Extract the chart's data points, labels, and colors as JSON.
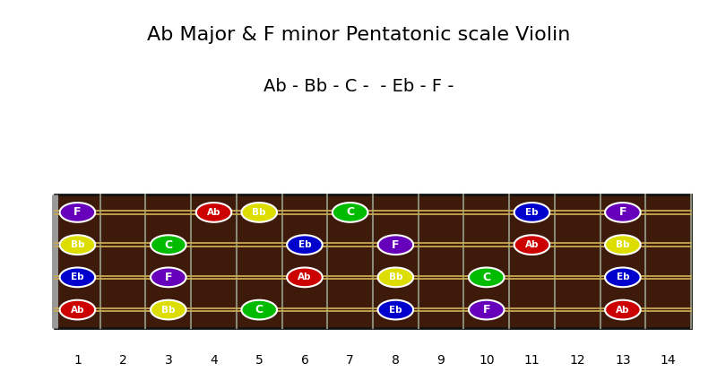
{
  "title": "Ab Major & F minor Pentatonic scale Violin",
  "subtitle": "Ab - Bb - C -  - Eb - F -",
  "fret_max": 14,
  "num_strings": 4,
  "background_color": "#ffffff",
  "board_color": "#3d1a0a",
  "string_color": "#c8aa50",
  "fret_line_color": "#888877",
  "nut_color": "#999999",
  "notes": [
    {
      "string": 3,
      "fret": 1,
      "note": "F",
      "color": "#6600bb"
    },
    {
      "string": 3,
      "fret": 4,
      "note": "Ab",
      "color": "#cc0000"
    },
    {
      "string": 3,
      "fret": 5,
      "note": "Bb",
      "color": "#dddd00"
    },
    {
      "string": 3,
      "fret": 7,
      "note": "C",
      "color": "#00bb00"
    },
    {
      "string": 3,
      "fret": 11,
      "note": "Eb",
      "color": "#0000cc"
    },
    {
      "string": 3,
      "fret": 13,
      "note": "F",
      "color": "#6600bb"
    },
    {
      "string": 2,
      "fret": 1,
      "note": "Bb",
      "color": "#dddd00"
    },
    {
      "string": 2,
      "fret": 3,
      "note": "C",
      "color": "#00bb00"
    },
    {
      "string": 2,
      "fret": 6,
      "note": "Eb",
      "color": "#0000cc"
    },
    {
      "string": 2,
      "fret": 8,
      "note": "F",
      "color": "#6600bb"
    },
    {
      "string": 2,
      "fret": 11,
      "note": "Ab",
      "color": "#cc0000"
    },
    {
      "string": 2,
      "fret": 13,
      "note": "Bb",
      "color": "#dddd00"
    },
    {
      "string": 1,
      "fret": 1,
      "note": "Eb",
      "color": "#0000cc"
    },
    {
      "string": 1,
      "fret": 3,
      "note": "F",
      "color": "#6600bb"
    },
    {
      "string": 1,
      "fret": 6,
      "note": "Ab",
      "color": "#cc0000"
    },
    {
      "string": 1,
      "fret": 8,
      "note": "Bb",
      "color": "#dddd00"
    },
    {
      "string": 1,
      "fret": 10,
      "note": "C",
      "color": "#00bb00"
    },
    {
      "string": 1,
      "fret": 13,
      "note": "Eb",
      "color": "#0000cc"
    },
    {
      "string": 0,
      "fret": 1,
      "note": "Ab",
      "color": "#cc0000"
    },
    {
      "string": 0,
      "fret": 3,
      "note": "Bb",
      "color": "#dddd00"
    },
    {
      "string": 0,
      "fret": 5,
      "note": "C",
      "color": "#00bb00"
    },
    {
      "string": 0,
      "fret": 8,
      "note": "Eb",
      "color": "#0000cc"
    },
    {
      "string": 0,
      "fret": 10,
      "note": "F",
      "color": "#6600bb"
    },
    {
      "string": 0,
      "fret": 13,
      "note": "Ab",
      "color": "#cc0000"
    }
  ]
}
